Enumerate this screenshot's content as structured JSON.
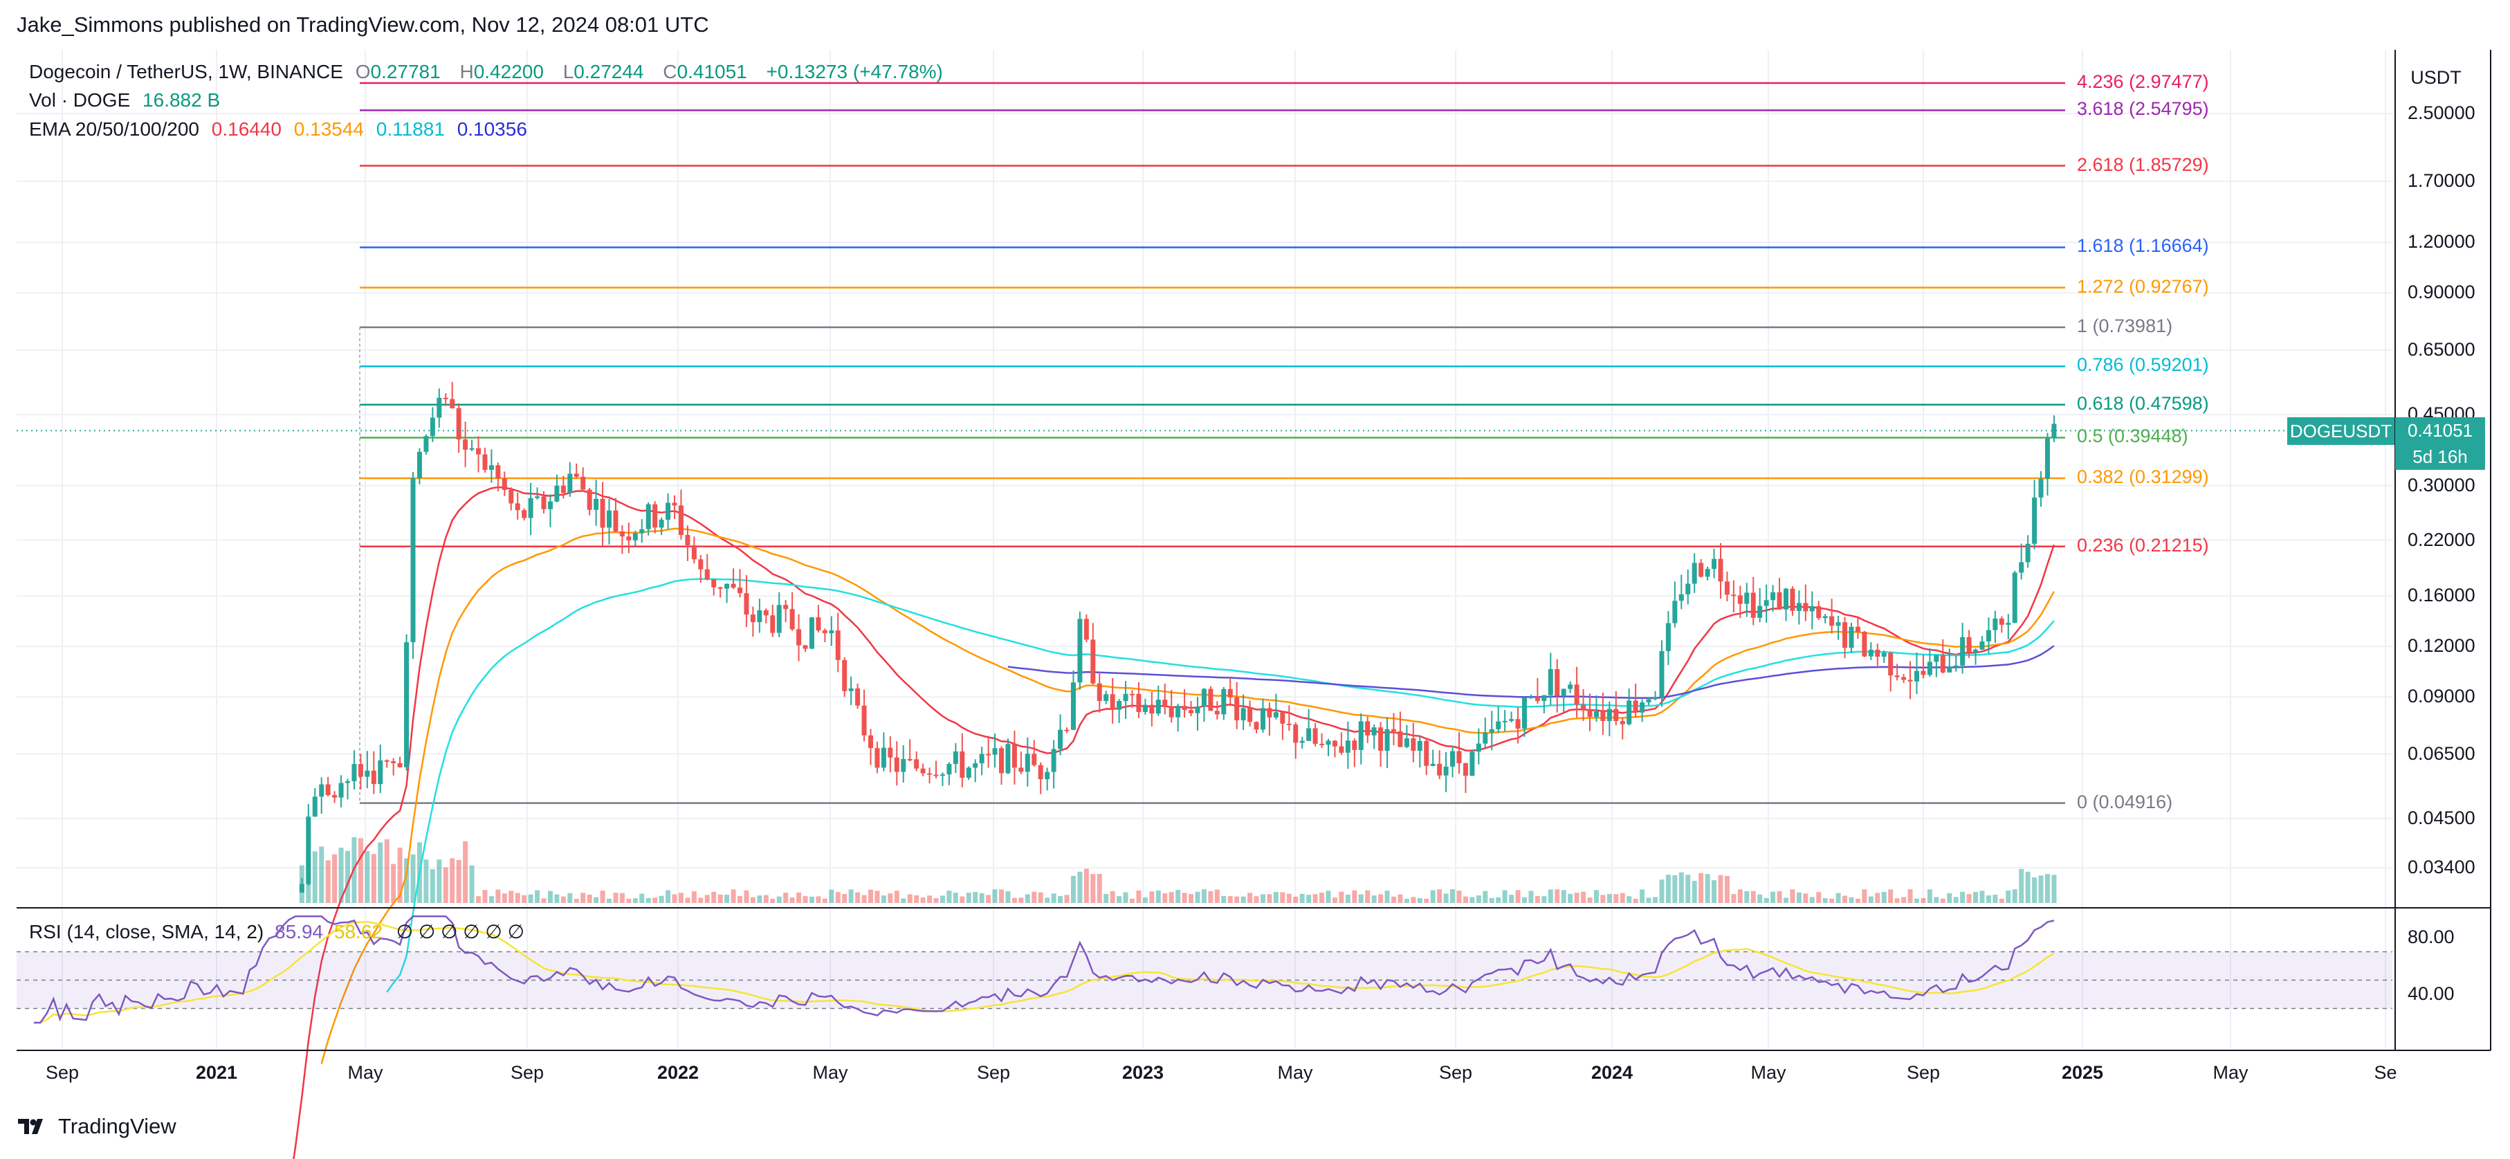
{
  "header": {
    "publisher": "Jake_Simmons published on TradingView.com, Nov 12, 2024 08:01 UTC"
  },
  "legend": {
    "symbol": "Dogecoin / TetherUS, 1W, BINANCE",
    "open_label": "O",
    "open": "0.27781",
    "high_label": "H",
    "high": "0.42200",
    "low_label": "L",
    "low": "0.27244",
    "close_label": "C",
    "close": "0.41051",
    "change": "+0.13273 (+47.78%)",
    "vol_label": "Vol · DOGE",
    "vol_value": "16.882 B",
    "ema_label": "EMA 20/50/100/200",
    "ema20": "0.16440",
    "ema50": "0.13544",
    "ema100": "0.11881",
    "ema200": "0.10356",
    "rsi_label": "RSI (14, close, SMA, 14, 2)",
    "rsi_value": "85.94",
    "rsi_sma": "58.62",
    "na_marks": [
      "∅",
      "∅",
      "∅",
      "∅",
      "∅",
      "∅"
    ]
  },
  "price_scale": {
    "currency": "USDT",
    "ticks": [
      "2.50000",
      "1.70000",
      "1.20000",
      "0.90000",
      "0.65000",
      "0.45000",
      "0.30000",
      "0.22000",
      "0.16000",
      "0.12000",
      "0.09000",
      "0.06500",
      "0.04500",
      "0.03400"
    ],
    "rsi_ticks": [
      "80.00",
      "40.00"
    ],
    "ticker": "DOGEUSDT",
    "last_price": "0.41051",
    "countdown": "5d 16h"
  },
  "time_axis": {
    "labels": [
      {
        "text": "Sep",
        "bold": false
      },
      {
        "text": "2021",
        "bold": true
      },
      {
        "text": "May",
        "bold": false
      },
      {
        "text": "Sep",
        "bold": false
      },
      {
        "text": "2022",
        "bold": true
      },
      {
        "text": "May",
        "bold": false
      },
      {
        "text": "Sep",
        "bold": false
      },
      {
        "text": "2023",
        "bold": true
      },
      {
        "text": "May",
        "bold": false
      },
      {
        "text": "Sep",
        "bold": false
      },
      {
        "text": "2024",
        "bold": true
      },
      {
        "text": "May",
        "bold": false
      },
      {
        "text": "Sep",
        "bold": false
      },
      {
        "text": "2025",
        "bold": true
      },
      {
        "text": "May",
        "bold": false
      },
      {
        "text": "Se",
        "bold": false
      }
    ]
  },
  "fibonacci": [
    {
      "label": "4.236 (2.97477)",
      "price": 2.97477,
      "color": "#e91e63"
    },
    {
      "label": "3.618 (2.54795)",
      "price": 2.54795,
      "color": "#9c27b0"
    },
    {
      "label": "2.618 (1.85729)",
      "price": 1.85729,
      "color": "#f23645"
    },
    {
      "label": "1.618 (1.16664)",
      "price": 1.16664,
      "color": "#2962ff"
    },
    {
      "label": "1.272 (0.92767)",
      "price": 0.92767,
      "color": "#ff9800"
    },
    {
      "label": "1 (0.73981)",
      "price": 0.73981,
      "color": "#787b86"
    },
    {
      "label": "0.786 (0.59201)",
      "price": 0.59201,
      "color": "#00bcd4"
    },
    {
      "label": "0.618 (0.47598)",
      "price": 0.47598,
      "color": "#089981"
    },
    {
      "label": "0.5 (0.39448)",
      "price": 0.39448,
      "color": "#4caf50"
    },
    {
      "label": "0.382 (0.31299)",
      "price": 0.31299,
      "color": "#ff9800"
    },
    {
      "label": "0.236 (0.21215)",
      "price": 0.21215,
      "color": "#f23645"
    },
    {
      "label": "0 (0.04916)",
      "price": 0.04916,
      "color": "#787b86"
    }
  ],
  "colors": {
    "up": "#26a69a",
    "down": "#ef5350",
    "ema20": "#f23645",
    "ema50": "#ff9800",
    "ema100": "#22e0e0",
    "ema200": "#5b4fd6",
    "rsi": "#7e57c2",
    "rsi_sma": "#f7e436"
  },
  "footer": {
    "brand": "TradingView"
  }
}
